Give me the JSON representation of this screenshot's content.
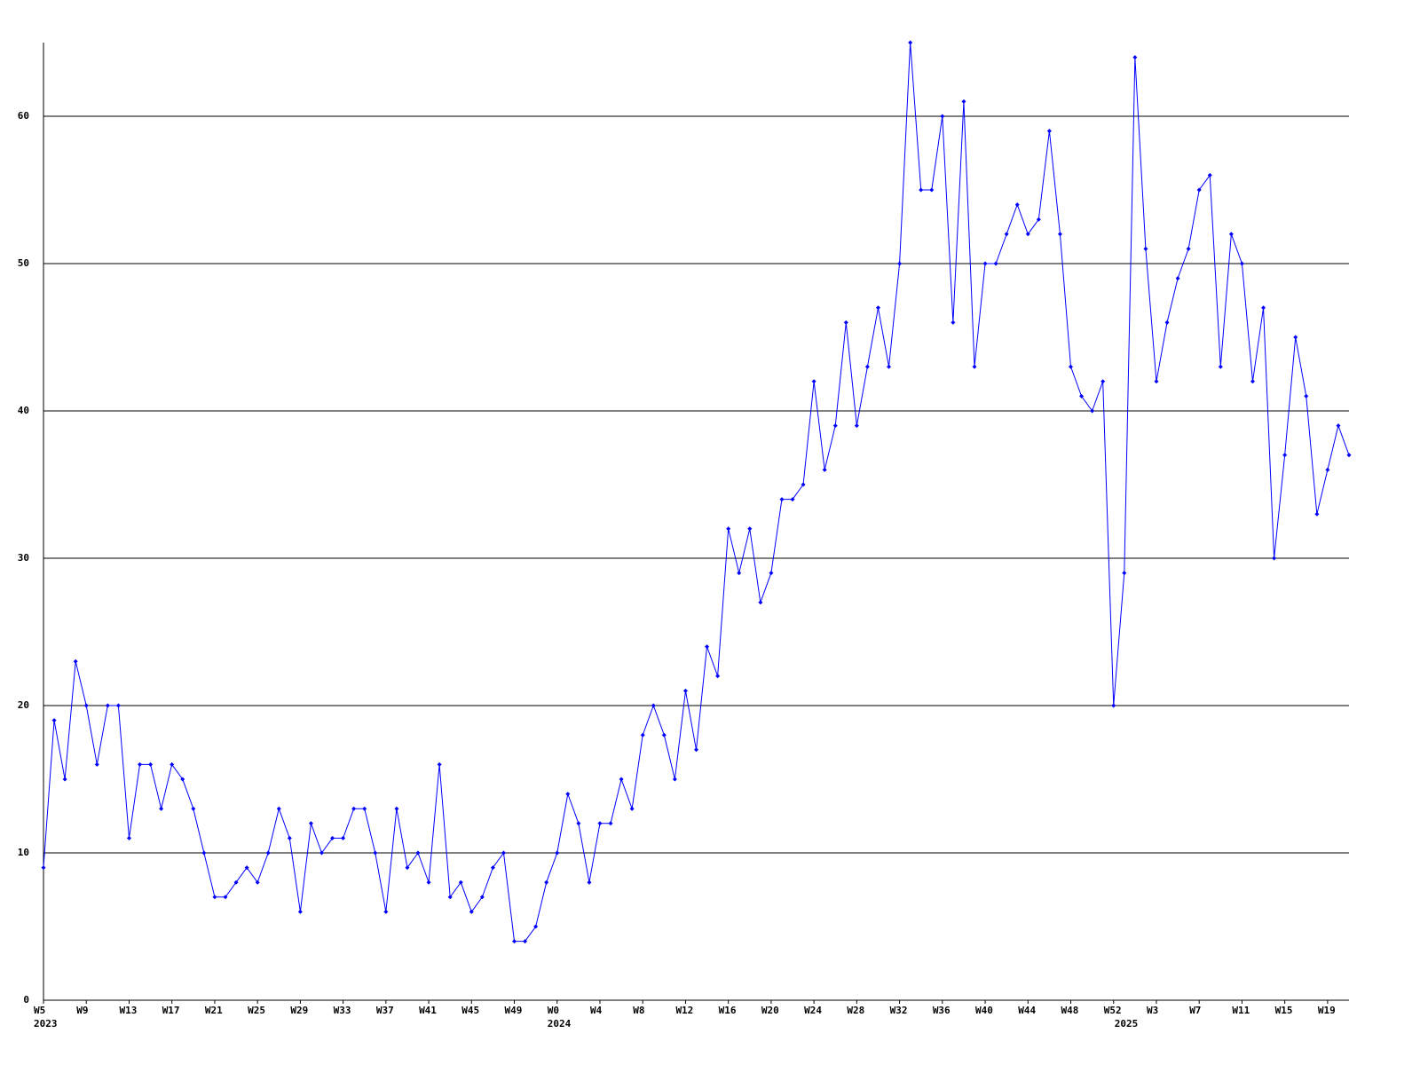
{
  "chart_data": {
    "type": "line",
    "categories": [
      "W5",
      null,
      null,
      null,
      "W9",
      null,
      null,
      null,
      "W13",
      null,
      null,
      null,
      "W17",
      null,
      null,
      null,
      "W21",
      null,
      null,
      null,
      "W25",
      null,
      null,
      null,
      "W29",
      null,
      null,
      null,
      "W33",
      null,
      null,
      null,
      "W37",
      null,
      null,
      null,
      "W41",
      null,
      null,
      null,
      "W45",
      null,
      null,
      null,
      "W49",
      null,
      null,
      null,
      "W0",
      null,
      null,
      null,
      "W4",
      null,
      null,
      null,
      "W8",
      null,
      null,
      null,
      "W12",
      null,
      null,
      null,
      "W16",
      null,
      null,
      null,
      "W20",
      null,
      null,
      null,
      "W24",
      null,
      null,
      null,
      "W28",
      null,
      null,
      null,
      "W32",
      null,
      null,
      null,
      "W36",
      null,
      null,
      null,
      "W40",
      null,
      null,
      null,
      "W44",
      null,
      null,
      null,
      "W48",
      null,
      null,
      null,
      "W52",
      null,
      null,
      null,
      "W3",
      null,
      null,
      null,
      "W7",
      null,
      null,
      null,
      "W11",
      null,
      null,
      null,
      "W15",
      null,
      null,
      null,
      "W19",
      null,
      null
    ],
    "year_labels": [
      "2023",
      null,
      null,
      null,
      null,
      null,
      null,
      null,
      null,
      null,
      null,
      null,
      null,
      null,
      null,
      null,
      null,
      null,
      null,
      null,
      null,
      null,
      null,
      null,
      null,
      null,
      null,
      null,
      null,
      null,
      null,
      null,
      null,
      null,
      null,
      null,
      null,
      null,
      null,
      null,
      null,
      null,
      null,
      null,
      null,
      null,
      null,
      null,
      "2024",
      null,
      null,
      null,
      null,
      null,
      null,
      null,
      null,
      null,
      null,
      null,
      null,
      null,
      null,
      null,
      null,
      null,
      null,
      null,
      null,
      null,
      null,
      null,
      null,
      null,
      null,
      null,
      null,
      null,
      null,
      null,
      null,
      null,
      null,
      null,
      null,
      null,
      null,
      null,
      null,
      null,
      null,
      null,
      null,
      null,
      null,
      null,
      null,
      null,
      null,
      null,
      null,
      "2025",
      null,
      null,
      null,
      null,
      null,
      null,
      null,
      null,
      null,
      null,
      null,
      null,
      null,
      null,
      null,
      null,
      null,
      null,
      null,
      null,
      null
    ],
    "series": [
      {
        "color": "#0000ff",
        "values": [
          9,
          19,
          15,
          23,
          20,
          16,
          20,
          20,
          11,
          16,
          16,
          13,
          16,
          15,
          13,
          10,
          7,
          7,
          8,
          9,
          8,
          10,
          13,
          11,
          6,
          12,
          10,
          11,
          11,
          13,
          13,
          10,
          6,
          13,
          9,
          10,
          8,
          16,
          7,
          8,
          6,
          7,
          9,
          10,
          4,
          4,
          5,
          8,
          10,
          14,
          12,
          8,
          12,
          12,
          15,
          13,
          18,
          20,
          18,
          15,
          21,
          17,
          24,
          22,
          32,
          29,
          32,
          27,
          29,
          34,
          34,
          35,
          42,
          36,
          39,
          46,
          39,
          43,
          47,
          43,
          50,
          65,
          55,
          55,
          60,
          46,
          61,
          43,
          50,
          50,
          52,
          54,
          52,
          53,
          59,
          52,
          43,
          41,
          40,
          42,
          20,
          29,
          64,
          51,
          42,
          46,
          49,
          51,
          55,
          56,
          43,
          52,
          50,
          42,
          47,
          30,
          37,
          45,
          41,
          33,
          36,
          39,
          37
        ]
      }
    ],
    "ylim": [
      0,
      65
    ],
    "yticks": [
      0,
      10,
      20,
      30,
      40,
      50,
      60
    ],
    "grid": true
  }
}
